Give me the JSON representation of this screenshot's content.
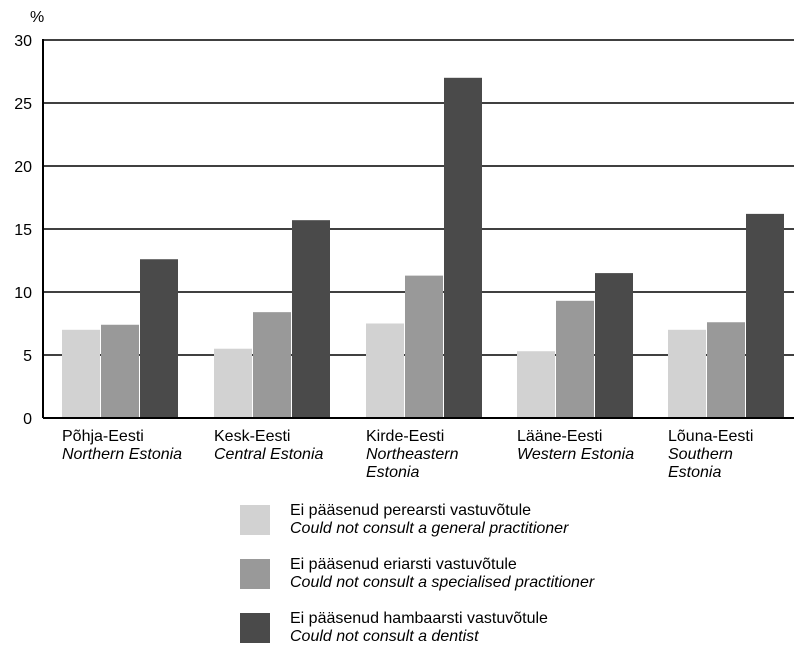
{
  "chart_data": {
    "type": "bar",
    "ylabel": "%",
    "ylim": [
      0,
      30
    ],
    "yticks": [
      0,
      5,
      10,
      15,
      20,
      25,
      30
    ],
    "grid": true,
    "categories": [
      {
        "et": "Põhja-Eesti",
        "en": [
          "Northern Estonia"
        ]
      },
      {
        "et": "Kesk-Eesti",
        "en": [
          "Central Estonia"
        ]
      },
      {
        "et": "Kirde-Eesti",
        "en": [
          "Northeastern",
          "Estonia"
        ]
      },
      {
        "et": "Lääne-Eesti",
        "en": [
          "Western Estonia"
        ]
      },
      {
        "et": "Lõuna-Eesti",
        "en": [
          "Southern",
          "Estonia"
        ]
      }
    ],
    "series": [
      {
        "name_et": "Ei pääsenud perearsti vastuvõtule",
        "name_en": "Could not consult a general practitioner",
        "color": "#d2d2d2",
        "values": [
          7.0,
          5.5,
          7.5,
          5.3,
          7.0
        ]
      },
      {
        "name_et": "Ei pääsenud eriarsti vastuvõtule",
        "name_en": "Could not consult a specialised practitioner",
        "color": "#999999",
        "values": [
          7.4,
          8.4,
          11.3,
          9.3,
          7.6
        ]
      },
      {
        "name_et": "Ei pääsenud hambaarsti vastuvõtule",
        "name_en": "Could not consult a dentist",
        "color": "#4a4a4a",
        "values": [
          12.6,
          15.7,
          27.0,
          11.5,
          16.2
        ]
      }
    ],
    "legend_position": "bottom"
  }
}
